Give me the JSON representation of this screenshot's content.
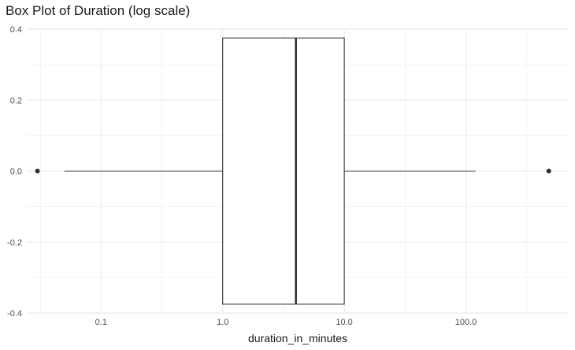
{
  "chart_data": {
    "type": "box",
    "title": "Box Plot of Duration (log scale)",
    "xlabel": "duration_in_minutes",
    "ylabel": "",
    "x_scale": "log10",
    "xlim": [
      0.0245,
      700
    ],
    "ylim": [
      -0.4,
      0.4
    ],
    "x_ticks": [
      {
        "value": 0.1,
        "label": "0.1"
      },
      {
        "value": 1,
        "label": "1.0"
      },
      {
        "value": 10,
        "label": "10.0"
      },
      {
        "value": 100,
        "label": "100.0"
      }
    ],
    "y_ticks": [
      {
        "value": 0.4,
        "label": "0.4"
      },
      {
        "value": 0.2,
        "label": "0.2"
      },
      {
        "value": 0.0,
        "label": "0.0"
      },
      {
        "value": -0.2,
        "label": "-0.2"
      },
      {
        "value": -0.4,
        "label": "-0.4"
      }
    ],
    "grid": true,
    "box": {
      "whisker_low": 0.05,
      "q1": 1.0,
      "median": 4.0,
      "q3": 10.0,
      "whisker_high": 120,
      "outliers": [
        0.03,
        480
      ],
      "y_center": 0.0,
      "y_half_width": 0.375
    },
    "colors": {
      "grid": "#ebebeb",
      "box_line": "#333333",
      "box_fill": "#ffffff",
      "text": "#4d4d4d"
    }
  }
}
